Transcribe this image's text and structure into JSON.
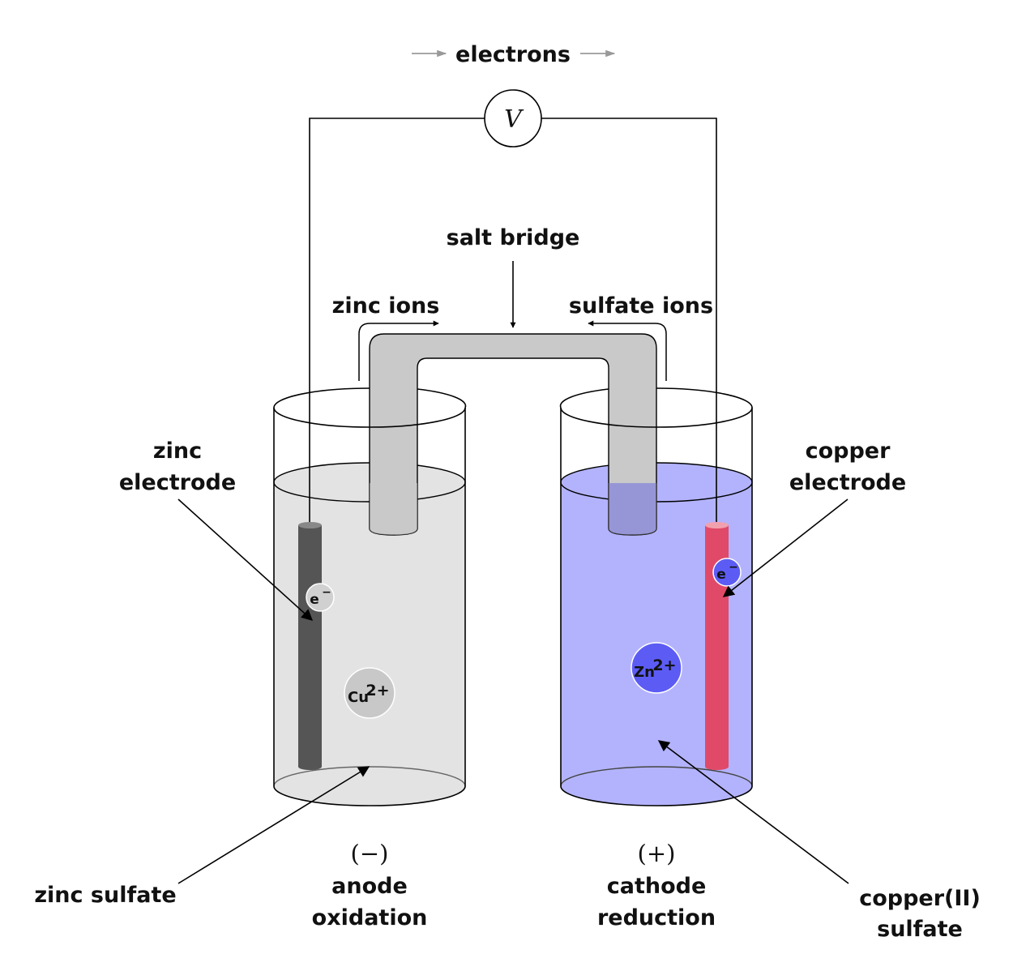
{
  "electron_flow": {
    "label": "electrons"
  },
  "voltmeter": {
    "symbol": "V"
  },
  "salt_bridge": {
    "label": "salt bridge",
    "left_flow_label": "zinc ions",
    "right_flow_label": "sulfate ions"
  },
  "left_cell": {
    "electrode_label": [
      "zinc",
      "electrode"
    ],
    "solution_label": "zinc sulfate",
    "sign": "(−)",
    "role": "anode",
    "process": "oxidation",
    "electron": {
      "symbol": "e",
      "charge": "−"
    },
    "ion": {
      "symbol": "Cu",
      "charge": "2+"
    },
    "colors": {
      "solution": "#e3e3e3",
      "electrode": "#555555",
      "electrode_top": "#888888",
      "ion": "#c8c8c8"
    }
  },
  "right_cell": {
    "electrode_label": [
      "copper",
      "electrode"
    ],
    "solution_label": [
      "copper(II)",
      "sulfate"
    ],
    "sign": "(+)",
    "role": "cathode",
    "process": "reduction",
    "electron": {
      "symbol": "e",
      "charge": "−"
    },
    "ion": {
      "symbol": "Zn",
      "charge": "2+"
    },
    "colors": {
      "solution": "#b3b3fd",
      "electrode": "#e04a68",
      "electrode_top": "#f1a1ae",
      "ion": "#5c5cf5"
    }
  },
  "colors": {
    "bridge": "#c9c9c9",
    "flow_arrow": "#999999"
  }
}
